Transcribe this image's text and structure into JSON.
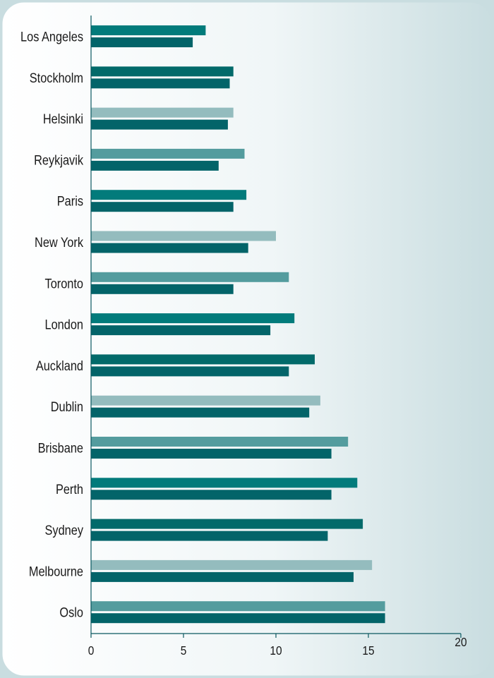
{
  "chart_data": {
    "type": "bar",
    "orientation": "horizontal",
    "categories": [
      "Los Angeles",
      "Stockholm",
      "Helsinki",
      "Reykjavik",
      "Paris",
      "New York",
      "Toronto",
      "London",
      "Auckland",
      "Dublin",
      "Brisbane",
      "Perth",
      "Sydney",
      "Melbourne",
      "Oslo"
    ],
    "series": [
      {
        "values": [
          6.2,
          7.7,
          7.7,
          8.3,
          8.4,
          10.0,
          10.7,
          11.0,
          12.1,
          12.4,
          13.9,
          14.4,
          14.7,
          15.2,
          15.9
        ]
      },
      {
        "values": [
          5.5,
          7.5,
          7.4,
          6.9,
          7.7,
          8.5,
          7.7,
          9.7,
          10.7,
          11.8,
          13.0,
          13.0,
          12.8,
          14.2,
          15.9
        ]
      }
    ],
    "top_bar_colors": [
      "#027b7b",
      "#026a6a",
      "#94bcbe",
      "#549c9e",
      "#027b7b",
      "#94bcbe",
      "#549c9e",
      "#027b7b",
      "#026a6a",
      "#94bcbe",
      "#549c9e",
      "#027b7b",
      "#026a6a",
      "#94bcbe",
      "#549c9e"
    ],
    "bottom_bar_color": "#036469",
    "xlim": [
      0,
      20
    ],
    "xticks": [
      0,
      5,
      10,
      15,
      20
    ],
    "xlabel": "",
    "ylabel": "",
    "title": "",
    "grid": false,
    "legend": "none",
    "background_gradient": [
      "#ffffff",
      "#c9dde0"
    ]
  }
}
